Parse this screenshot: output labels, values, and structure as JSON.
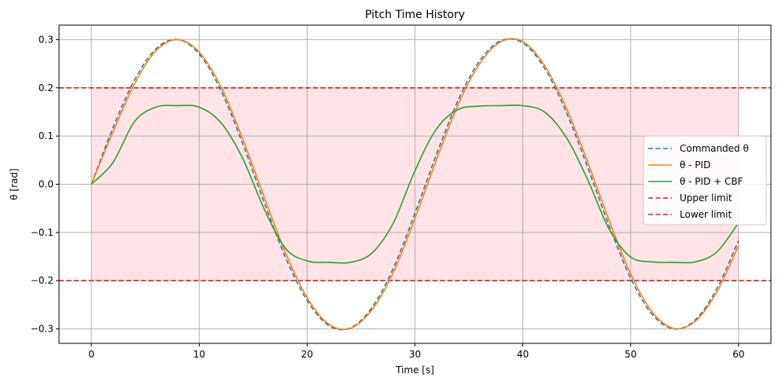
{
  "chart_data": {
    "type": "line",
    "title": "Pitch Time History",
    "xlabel": "Time [s]",
    "ylabel": "θ [rad]",
    "xlim": [
      -3,
      63
    ],
    "ylim": [
      -0.33,
      0.33
    ],
    "grid": true,
    "legend_position": "center-right",
    "x_ticks": [
      0,
      10,
      20,
      30,
      40,
      50,
      60
    ],
    "x_tick_labels": [
      "0",
      "10",
      "20",
      "30",
      "40",
      "50",
      "60"
    ],
    "y_ticks": [
      -0.3,
      -0.2,
      -0.1,
      0.0,
      0.1,
      0.2,
      0.3
    ],
    "y_tick_labels": [
      "−0.3",
      "−0.2",
      "−0.1",
      "0.0",
      "0.1",
      "0.2",
      "0.3"
    ],
    "x": [
      0,
      2,
      4,
      6,
      8,
      10,
      12,
      14,
      16,
      18,
      20,
      22,
      24,
      26,
      28,
      30,
      32,
      34,
      36,
      38,
      40,
      42,
      44,
      46,
      48,
      50,
      52,
      54,
      56,
      58,
      60
    ],
    "safe_region": {
      "lower": -0.2,
      "upper": 0.2,
      "color": "#ffe3e6"
    },
    "series": [
      {
        "name": "Commanded θ",
        "color": "#1f77b4",
        "style": "dashed",
        "values": [
          0.0,
          0.117,
          0.216,
          0.281,
          0.3,
          0.27,
          0.195,
          0.086,
          -0.036,
          -0.152,
          -0.241,
          -0.293,
          -0.298,
          -0.256,
          -0.174,
          -0.06,
          0.062,
          0.174,
          0.256,
          0.298,
          0.293,
          0.241,
          0.151,
          0.036,
          -0.086,
          -0.195,
          -0.27,
          -0.3,
          -0.281,
          -0.216,
          -0.117
        ]
      },
      {
        "name": "θ - PID",
        "color": "#ff7f0e",
        "style": "solid",
        "values": [
          0.0,
          0.108,
          0.208,
          0.277,
          0.3,
          0.274,
          0.203,
          0.096,
          -0.025,
          -0.142,
          -0.235,
          -0.29,
          -0.299,
          -0.261,
          -0.183,
          -0.071,
          0.051,
          0.165,
          0.25,
          0.296,
          0.296,
          0.247,
          0.16,
          0.047,
          -0.075,
          -0.186,
          -0.265,
          -0.299,
          -0.284,
          -0.223,
          -0.127
        ]
      },
      {
        "name": "θ - PID + CBF",
        "color": "#2ca02c",
        "style": "solid",
        "values": [
          0.0,
          0.045,
          0.13,
          0.16,
          0.163,
          0.16,
          0.128,
          0.055,
          -0.05,
          -0.133,
          -0.159,
          -0.162,
          -0.162,
          -0.143,
          -0.08,
          0.028,
          0.115,
          0.155,
          0.162,
          0.163,
          0.163,
          0.15,
          0.098,
          0.01,
          -0.093,
          -0.151,
          -0.161,
          -0.162,
          -0.161,
          -0.14,
          -0.08
        ]
      },
      {
        "name": "Upper limit",
        "color": "#e31a1c",
        "style": "dashed",
        "values": [
          0.2,
          0.2,
          0.2,
          0.2,
          0.2,
          0.2,
          0.2,
          0.2,
          0.2,
          0.2,
          0.2,
          0.2,
          0.2,
          0.2,
          0.2,
          0.2,
          0.2,
          0.2,
          0.2,
          0.2,
          0.2,
          0.2,
          0.2,
          0.2,
          0.2,
          0.2,
          0.2,
          0.2,
          0.2,
          0.2,
          0.2
        ]
      },
      {
        "name": "Lower limit",
        "color": "#e31a1c",
        "style": "dashed",
        "values": [
          -0.2,
          -0.2,
          -0.2,
          -0.2,
          -0.2,
          -0.2,
          -0.2,
          -0.2,
          -0.2,
          -0.2,
          -0.2,
          -0.2,
          -0.2,
          -0.2,
          -0.2,
          -0.2,
          -0.2,
          -0.2,
          -0.2,
          -0.2,
          -0.2,
          -0.2,
          -0.2,
          -0.2,
          -0.2,
          -0.2,
          -0.2,
          -0.2,
          -0.2,
          -0.2,
          -0.2
        ]
      }
    ]
  }
}
